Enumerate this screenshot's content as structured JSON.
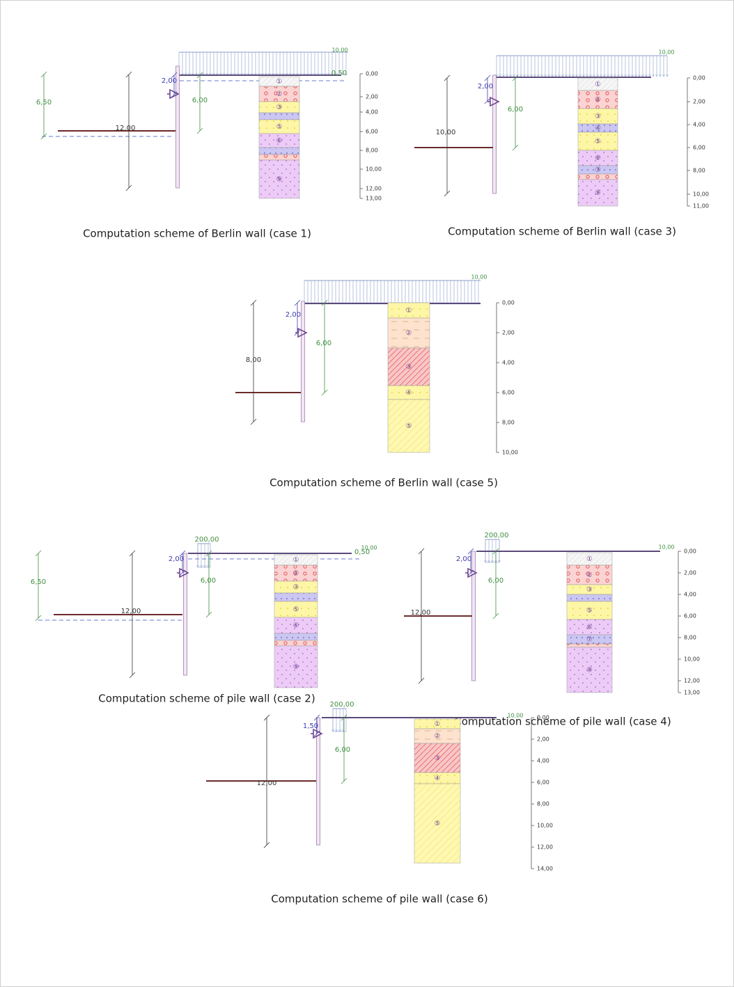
{
  "schemes": [
    {
      "caption": "Computation scheme of Berlin wall (case 1)",
      "load": "10,00",
      "water": "0,50",
      "dims": [
        "2,00",
        "6,00",
        "6,50",
        "12,00"
      ],
      "depths": [
        "0,00",
        "2,00",
        "4,00",
        "6,00",
        "8,00",
        "10,00",
        "12,00",
        "13,00"
      ],
      "layers": [
        "①",
        "②",
        "③",
        "⑤",
        "⑥",
        "⑨"
      ]
    },
    {
      "caption": "Computation scheme of Berlin wall (case 3)",
      "load": "10,00",
      "dims": [
        "2,00",
        "6,00",
        "10,00"
      ],
      "depths": [
        "0,00",
        "2,00",
        "4,00",
        "6,00",
        "8,00",
        "10,00",
        "11,00"
      ],
      "layers": [
        "①",
        "②",
        "③",
        "④",
        "⑤",
        "⑥",
        "⑦",
        "⑨"
      ]
    },
    {
      "caption": "Computation scheme of Berlin wall (case 5)",
      "load": "10,00",
      "dims": [
        "2,00",
        "6,00",
        "8,00"
      ],
      "depths": [
        "0,00",
        "2,00",
        "4,00",
        "6,00",
        "8,00",
        "10,00"
      ],
      "layers": [
        "①",
        "②",
        "③",
        "④",
        "⑤"
      ]
    },
    {
      "caption": "Computation scheme of pile wall (case 2)",
      "load": "10,00",
      "water": "0,50",
      "point": "200,00",
      "dims": [
        "2,00",
        "6,00",
        "6,50",
        "12,00"
      ],
      "layers": [
        "①",
        "②",
        "③",
        "⑤",
        "⑥",
        "⑨"
      ]
    },
    {
      "caption": "Computation scheme of pile wall (case 4)",
      "load": "10,00",
      "point": "200,00",
      "dims": [
        "2,00",
        "6,00",
        "12,00"
      ],
      "depths": [
        "0,00",
        "2,00",
        "4,00",
        "6,00",
        "8,00",
        "10,00",
        "12,00",
        "13,00"
      ],
      "layers": [
        "①",
        "②",
        "③",
        "⑤",
        "⑥",
        "⑦",
        "⑨"
      ]
    },
    {
      "caption": "Computation scheme of pile wall (case 6)",
      "load": "10,00",
      "point": "200,00",
      "dims": [
        "1,50",
        "6,00",
        "12,00"
      ],
      "depths": [
        "0,00",
        "2,00",
        "4,00",
        "6,00",
        "8,00",
        "10,00",
        "12,00",
        "14,00"
      ],
      "layers": [
        "①",
        "②",
        "③",
        "④",
        "⑤"
      ]
    }
  ]
}
